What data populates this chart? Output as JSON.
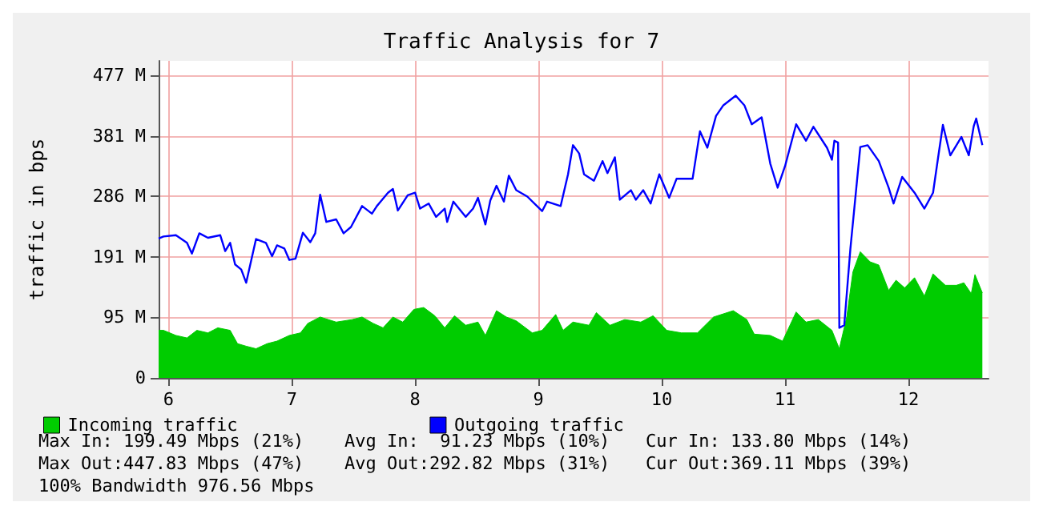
{
  "chart_data": {
    "type": "area",
    "title": "Traffic Analysis for 7",
    "ylabel": "traffic in bps",
    "xlim": [
      5.92,
      12.65
    ],
    "xticks": [
      6,
      7,
      8,
      9,
      10,
      11,
      12
    ],
    "ylim": [
      0,
      500
    ],
    "yticks": [
      0,
      {
        "value": 95.37,
        "label": "95 M"
      },
      {
        "value": 190.73,
        "label": "191 M"
      },
      {
        "value": 286.1,
        "label": "286 M"
      },
      {
        "value": 381.47,
        "label": "381 M"
      },
      {
        "value": 476.84,
        "label": "477 M"
      }
    ],
    "grid": true,
    "legend": "bottom",
    "series": [
      {
        "name": "Incoming traffic",
        "color": "#00cc00",
        "x": [
          5.92,
          5.96,
          6.06,
          6.15,
          6.23,
          6.32,
          6.4,
          6.5,
          6.56,
          6.63,
          6.71,
          6.8,
          6.88,
          6.98,
          7.07,
          7.13,
          7.23,
          7.36,
          7.49,
          7.57,
          7.66,
          7.74,
          7.82,
          7.9,
          7.99,
          8.07,
          8.16,
          8.24,
          8.32,
          8.41,
          8.51,
          8.57,
          8.66,
          8.74,
          8.82,
          8.95,
          9.03,
          9.14,
          9.2,
          9.28,
          9.41,
          9.47,
          9.58,
          9.7,
          9.83,
          9.93,
          10.04,
          10.16,
          10.29,
          10.42,
          10.58,
          10.69,
          10.75,
          10.88,
          10.98,
          11.09,
          11.17,
          11.27,
          11.38,
          11.44,
          11.5,
          11.55,
          11.61,
          11.69,
          11.76,
          11.84,
          11.9,
          11.97,
          12.05,
          12.13,
          12.2,
          12.3,
          12.39,
          12.45,
          12.51,
          12.54,
          12.6
        ],
        "values": [
          75,
          75,
          67,
          63,
          75,
          71,
          79,
          75,
          54,
          50,
          46,
          54,
          58,
          67,
          71,
          86,
          96,
          88,
          92,
          96,
          86,
          79,
          96,
          88,
          108,
          111,
          98,
          79,
          98,
          83,
          88,
          67,
          106,
          96,
          90,
          71,
          75,
          100,
          75,
          88,
          83,
          103,
          83,
          92,
          88,
          98,
          75,
          71,
          71,
          96,
          106,
          92,
          69,
          67,
          58,
          104,
          88,
          92,
          75,
          46,
          96,
          167,
          199,
          183,
          178,
          138,
          154,
          142,
          158,
          129,
          164,
          146,
          146,
          150,
          133,
          163,
          134
        ]
      },
      {
        "name": "Outgoing traffic",
        "type": "line",
        "color": "#0000ff",
        "x": [
          5.92,
          5.96,
          6.06,
          6.15,
          6.19,
          6.25,
          6.32,
          6.42,
          6.46,
          6.5,
          6.54,
          6.59,
          6.63,
          6.71,
          6.79,
          6.84,
          6.88,
          6.94,
          6.98,
          7.03,
          7.09,
          7.15,
          7.19,
          7.23,
          7.28,
          7.36,
          7.42,
          7.48,
          7.57,
          7.65,
          7.69,
          7.78,
          7.82,
          7.86,
          7.94,
          8.0,
          8.04,
          8.11,
          8.17,
          8.24,
          8.26,
          8.31,
          8.41,
          8.47,
          8.51,
          8.57,
          8.61,
          8.66,
          8.72,
          8.76,
          8.82,
          8.91,
          9.03,
          9.07,
          9.18,
          9.24,
          9.28,
          9.33,
          9.37,
          9.45,
          9.52,
          9.56,
          9.62,
          9.66,
          9.75,
          9.79,
          9.85,
          9.91,
          9.98,
          10.06,
          10.12,
          10.25,
          10.31,
          10.37,
          10.44,
          10.5,
          10.6,
          10.67,
          10.73,
          10.81,
          10.88,
          10.94,
          11.0,
          11.09,
          11.17,
          11.23,
          11.34,
          11.38,
          11.4,
          11.43,
          11.44,
          11.48,
          11.53,
          11.61,
          11.67,
          11.76,
          11.84,
          11.88,
          11.95,
          12.05,
          12.13,
          12.2,
          12.24,
          12.28,
          12.34,
          12.43,
          12.49,
          12.53,
          12.55,
          12.6
        ],
        "values": [
          220,
          223,
          225,
          213,
          196,
          228,
          221,
          225,
          200,
          213,
          179,
          171,
          150,
          219,
          213,
          192,
          209,
          204,
          186,
          188,
          229,
          214,
          228,
          289,
          246,
          250,
          228,
          238,
          271,
          259,
          271,
          292,
          298,
          264,
          288,
          292,
          267,
          275,
          254,
          267,
          246,
          278,
          254,
          267,
          284,
          242,
          280,
          303,
          278,
          319,
          296,
          286,
          263,
          278,
          271,
          321,
          367,
          354,
          321,
          311,
          342,
          323,
          348,
          281,
          296,
          281,
          296,
          275,
          321,
          284,
          314,
          314,
          389,
          363,
          413,
          430,
          445,
          430,
          400,
          411,
          338,
          300,
          334,
          400,
          374,
          396,
          363,
          344,
          374,
          371,
          79,
          83,
          204,
          364,
          367,
          342,
          300,
          275,
          317,
          292,
          267,
          292,
          346,
          399,
          351,
          380,
          351,
          397,
          409,
          367
        ]
      }
    ],
    "annotations": [
      "Max In: 199.49 Mbps (21%)",
      "Avg In:  91.23 Mbps (10%)",
      "Cur In: 133.80 Mbps (14%)",
      "Max Out:447.83 Mbps (47%)",
      "Avg Out:292.82 Mbps (31%)",
      "Cur Out:369.11 Mbps (39%)",
      "100% Bandwidth 976.56 Mbps"
    ]
  }
}
